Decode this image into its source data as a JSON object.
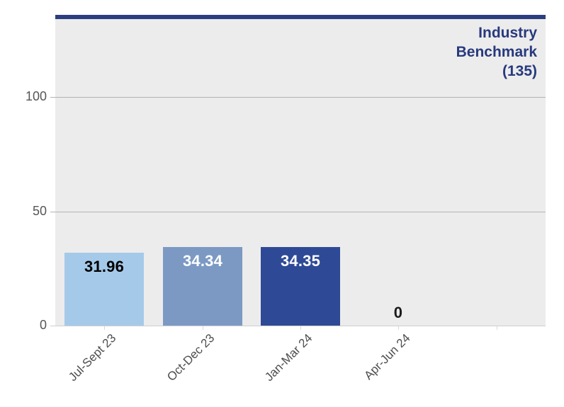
{
  "chart_data": {
    "type": "bar",
    "title": "",
    "xlabel": "",
    "ylabel": "",
    "categories": [
      "Jul-Sept 23",
      "Oct-Dec 23",
      "Jan-Mar 24",
      "Apr-Jun 24"
    ],
    "values": [
      31.96,
      34.34,
      34.35,
      0
    ],
    "value_labels": [
      "31.96",
      "34.34",
      "34.35",
      "0"
    ],
    "bar_colors": [
      "#a5cae9",
      "#7b99c3",
      "#2e4a96",
      "#ececec"
    ],
    "value_label_colors": [
      "#000000",
      "#ffffff",
      "#ffffff",
      "#1a1a1a"
    ],
    "ytick_labels": [
      "0",
      "50",
      "100"
    ],
    "ytick_values": [
      0,
      50,
      100
    ],
    "ylim": [
      0,
      135
    ],
    "x_tick_slots": 5,
    "grid": true,
    "legend_position": "none",
    "benchmark": {
      "value": 135,
      "label": "Industry\nBenchmark\n(135)",
      "line_color": "#2b3f80",
      "text_color": "#27397d"
    },
    "colors": {
      "plot_bg": "#ececec",
      "gridline": "#b3b3b3",
      "axis_line": "#cfcfcf",
      "tick_mark": "#d9d9d9",
      "axis_label": "#565656",
      "x_label": "#4d4d4d"
    }
  }
}
